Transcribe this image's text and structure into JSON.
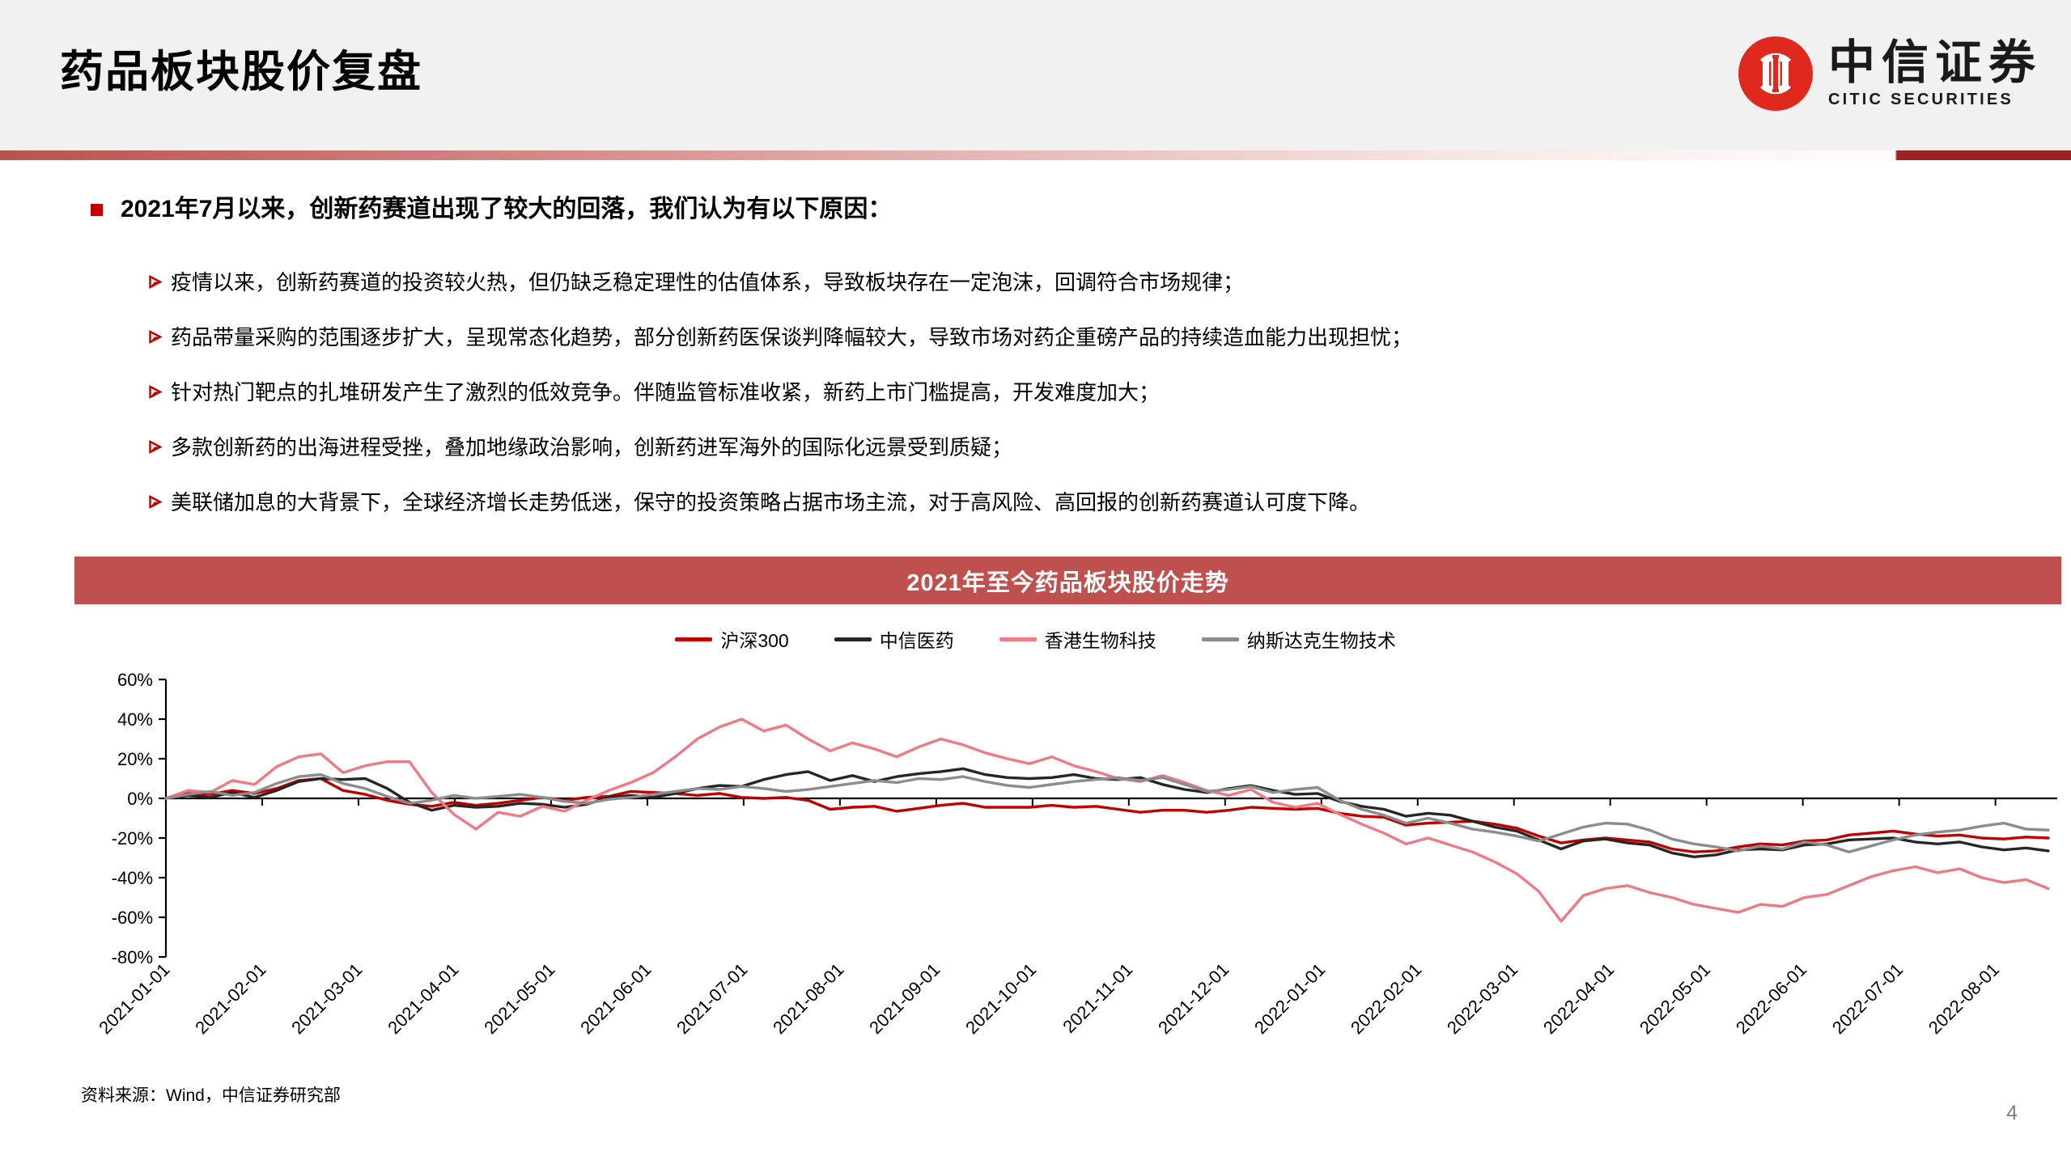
{
  "slide": {
    "title": "药品板块股价复盘",
    "page_number": "4",
    "source": "资料来源：Wind，中信证券研究部"
  },
  "logo": {
    "cn": "中信证券",
    "en": "CITIC SECURITIES"
  },
  "theme": {
    "accent_red": "#c00000",
    "logo_red": "#e0281e",
    "chart_title_bg": "#c0504d",
    "header_bg": "#f1f1f2",
    "divider_gradient_left": "#b9524e",
    "divider_gradient_right": "#9e2124"
  },
  "bullets": {
    "main": "2021年7月以来，创新药赛道出现了较大的回落，我们认为有以下原因：",
    "items": [
      "疫情以来，创新药赛道的投资较火热，但仍缺乏稳定理性的估值体系，导致板块存在一定泡沫，回调符合市场规律；",
      "药品带量采购的范围逐步扩大，呈现常态化趋势，部分创新药医保谈判降幅较大，导致市场对药企重磅产品的持续造血能力出现担忧；",
      "针对热门靶点的扎堆研发产生了激烈的低效竞争。伴随监管标准收紧，新药上市门槛提高，开发难度加大；",
      "多款创新药的出海进程受挫，叠加地缘政治影响，创新药进军海外的国际化远景受到质疑；",
      "美联储加息的大背景下，全球经济增长走势低迷，保守的投资策略占据市场主流，对于高风险、高回报的创新药赛道认可度下降。"
    ]
  },
  "chart_data": {
    "type": "line",
    "title": "2021年至今药品板块股价走势",
    "xlabel": "",
    "ylabel": "",
    "ylim": [
      -80,
      60
    ],
    "y_ticks": [
      60,
      40,
      20,
      0,
      -20,
      -40,
      -60,
      -80
    ],
    "y_tick_suffix": "%",
    "grid": false,
    "legend_position": "top",
    "x_start_date": "2021-01-01",
    "x_step_days": 7,
    "x_tick_labels": [
      "2021-01-01",
      "2021-02-01",
      "2021-03-01",
      "2021-04-01",
      "2021-05-01",
      "2021-06-01",
      "2021-07-01",
      "2021-08-01",
      "2021-09-01",
      "2021-10-01",
      "2021-11-01",
      "2021-12-01",
      "2022-01-01",
      "2022-02-01",
      "2022-03-01",
      "2022-04-01",
      "2022-05-01",
      "2022-06-01",
      "2022-07-01",
      "2022-08-01"
    ],
    "unit": "percent change since 2021-01-01",
    "series": [
      {
        "name": "沪深300",
        "color": "#c00000",
        "values": [
          0,
          2.5,
          2,
          4,
          2.5,
          5,
          9,
          10,
          4,
          2,
          -1,
          -3,
          -4,
          -2,
          -3.5,
          -2.5,
          -1,
          0.5,
          -1,
          0.5,
          1,
          3.5,
          3,
          2.5,
          1.5,
          2.5,
          0.5,
          0,
          0.5,
          -1,
          -5.5,
          -4.5,
          -4,
          -6.5,
          -5,
          -3.5,
          -2.5,
          -4.5,
          -4.5,
          -4.5,
          -3.5,
          -4.5,
          -4,
          -5.5,
          -7,
          -6,
          -6,
          -7,
          -6,
          -4.5,
          -5,
          -5.5,
          -5,
          -7.5,
          -9,
          -9.5,
          -13.5,
          -12.5,
          -12,
          -11.5,
          -13,
          -15,
          -19,
          -22.5,
          -21,
          -20,
          -21,
          -22,
          -25.5,
          -27,
          -26.5,
          -24.5,
          -23,
          -23.5,
          -21.5,
          -21,
          -18.5,
          -17.5,
          -16.5,
          -18,
          -19,
          -18.5,
          -20,
          -20.5,
          -19.5,
          -20
        ]
      },
      {
        "name": "中信医药",
        "color": "#262626",
        "values": [
          0,
          1.5,
          0.5,
          3,
          0.5,
          4,
          8.5,
          10,
          9.5,
          10,
          5,
          -2,
          -6,
          -3.5,
          -4.5,
          -4,
          -2.5,
          -3,
          -4.5,
          -3,
          0.5,
          1.5,
          0.5,
          2.5,
          5,
          6.5,
          6,
          9.5,
          12,
          13.5,
          9,
          11.5,
          8.5,
          11,
          12.5,
          13.5,
          15,
          12,
          10.5,
          10,
          10.5,
          12,
          10,
          9.5,
          10.5,
          7,
          4.5,
          3,
          5,
          6.5,
          4,
          2,
          2.5,
          -1.5,
          -4,
          -5.5,
          -9,
          -7.5,
          -8.5,
          -11.5,
          -14.5,
          -16.5,
          -21,
          -25.5,
          -21.5,
          -20.5,
          -22.5,
          -23.5,
          -27.5,
          -29.5,
          -28.5,
          -26,
          -25.5,
          -26,
          -23.5,
          -23,
          -21,
          -20.5,
          -20,
          -22,
          -23,
          -22,
          -24.5,
          -26,
          -25,
          -26.5
        ]
      },
      {
        "name": "香港生物科技",
        "color": "#ef7a85",
        "values": [
          0,
          4,
          3,
          9,
          7,
          16,
          21,
          22.5,
          13,
          16.5,
          18.5,
          18.5,
          3,
          -8,
          -15.5,
          -7,
          -9,
          -4,
          -6.5,
          -1,
          4,
          8,
          13,
          21,
          30,
          36,
          40,
          34,
          37,
          30,
          24,
          28,
          25,
          21,
          26,
          30,
          27,
          23,
          20,
          17.5,
          21,
          16.5,
          13.5,
          10,
          8.5,
          11.5,
          8,
          4,
          1.5,
          4.5,
          -2,
          -4.5,
          -2.5,
          -8,
          -13,
          -17.5,
          -23,
          -20,
          -23.5,
          -27,
          -32,
          -38,
          -47,
          -62,
          -49,
          -45.5,
          -44,
          -47.5,
          -50,
          -53.5,
          -55.5,
          -57.5,
          -53.5,
          -54.5,
          -50,
          -48.5,
          -44,
          -39.5,
          -36.5,
          -34.5,
          -37.5,
          -35.5,
          -40,
          -42.5,
          -41,
          -45.5
        ]
      },
      {
        "name": "纳斯达克生物技术",
        "color": "#8c8c8c",
        "values": [
          0,
          2,
          3.5,
          1.5,
          3,
          7.5,
          11,
          12,
          7.5,
          5,
          1,
          -2.5,
          -1,
          1.5,
          0,
          1,
          2,
          0.5,
          -1.5,
          -2.5,
          -0.5,
          0.5,
          2,
          3.5,
          5,
          4.5,
          6,
          5,
          3.5,
          4.5,
          6,
          7.5,
          9,
          8,
          10,
          9.5,
          11,
          8.5,
          6.5,
          5.5,
          7,
          8.5,
          9.5,
          10.5,
          9,
          10.5,
          7,
          3.5,
          4.5,
          6,
          3,
          4.5,
          5.5,
          -1,
          -5.5,
          -8.5,
          -12.5,
          -10,
          -12.5,
          -15.5,
          -17,
          -19,
          -21.5,
          -18,
          -14.5,
          -12.5,
          -13,
          -16,
          -20.5,
          -23,
          -24.5,
          -26.5,
          -24,
          -25.5,
          -22,
          -23.5,
          -27,
          -24,
          -21,
          -18.5,
          -17,
          -16,
          -14,
          -12.5,
          -15.5,
          -16
        ]
      }
    ]
  }
}
